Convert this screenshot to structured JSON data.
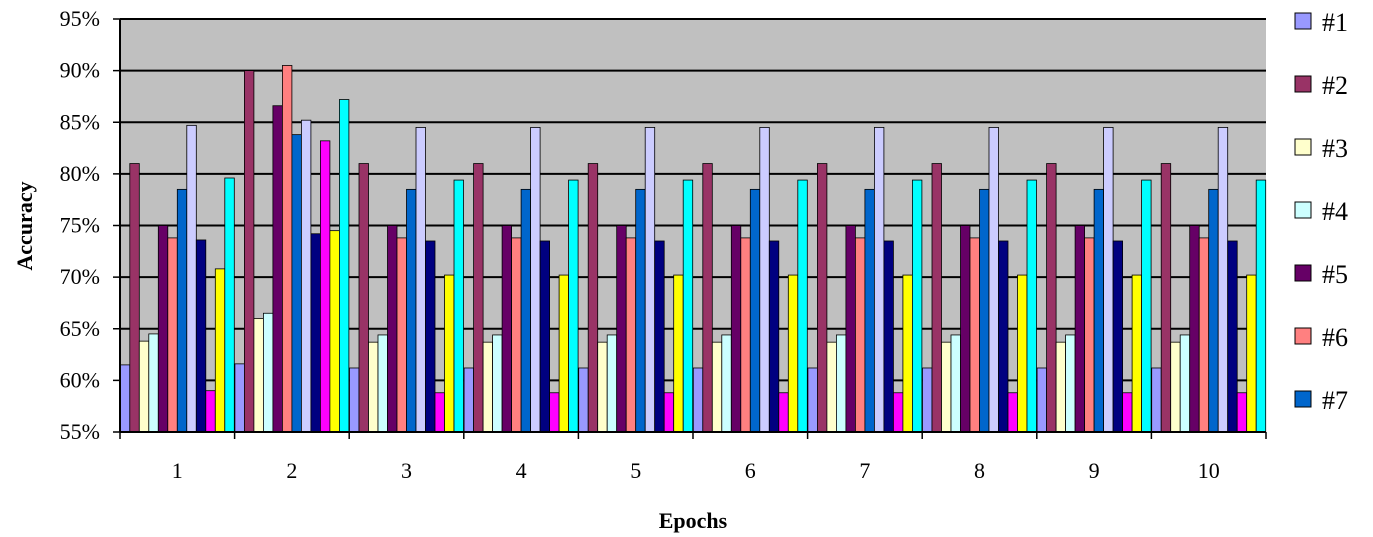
{
  "chart_data": {
    "type": "bar",
    "xlabel": "Epochs",
    "ylabel": "Accuracy",
    "y_unit": "%",
    "ylim": [
      55,
      95
    ],
    "yticks": [
      55,
      60,
      65,
      70,
      75,
      80,
      85,
      90,
      95
    ],
    "ytick_labels": [
      "55%",
      "60%",
      "65%",
      "70%",
      "75%",
      "80%",
      "85%",
      "90%",
      "95%"
    ],
    "grid": true,
    "legend_position": "right",
    "plot_background": "#c0c0c0",
    "categories": [
      "1",
      "2",
      "3",
      "4",
      "5",
      "6",
      "7",
      "8",
      "9",
      "10"
    ],
    "series": [
      {
        "color": "#9999ff",
        "values": [
          61.5,
          61.6,
          61.2,
          61.2,
          61.2,
          61.2,
          61.2,
          61.2,
          61.2,
          61.2
        ]
      },
      {
        "color": "#993366",
        "values": [
          81.0,
          90.0,
          81.0,
          81.0,
          81.0,
          81.0,
          81.0,
          81.0,
          81.0,
          81.0
        ]
      },
      {
        "color": "#ffffcc",
        "values": [
          63.8,
          66.0,
          63.7,
          63.7,
          63.7,
          63.7,
          63.7,
          63.7,
          63.7,
          63.7
        ]
      },
      {
        "color": "#ccffff",
        "values": [
          64.5,
          66.5,
          64.4,
          64.4,
          64.4,
          64.4,
          64.4,
          64.4,
          64.4,
          64.4
        ]
      },
      {
        "color": "#660066",
        "values": [
          75.0,
          86.6,
          75.0,
          75.0,
          75.0,
          75.0,
          75.0,
          75.0,
          75.0,
          75.0
        ]
      },
      {
        "color": "#ff8080",
        "values": [
          73.8,
          90.5,
          73.8,
          73.8,
          73.8,
          73.8,
          73.8,
          73.8,
          73.8,
          73.8
        ]
      },
      {
        "color": "#0066cc",
        "values": [
          78.5,
          83.8,
          78.5,
          78.5,
          78.5,
          78.5,
          78.5,
          78.5,
          78.5,
          78.5
        ]
      },
      {
        "color": "#ccccff",
        "values": [
          84.7,
          85.2,
          84.5,
          84.5,
          84.5,
          84.5,
          84.5,
          84.5,
          84.5,
          84.5
        ]
      },
      {
        "color": "#000080",
        "values": [
          73.6,
          74.2,
          73.5,
          73.5,
          73.5,
          73.5,
          73.5,
          73.5,
          73.5,
          73.5
        ]
      },
      {
        "color": "#ff00ff",
        "values": [
          59.0,
          83.2,
          58.8,
          58.8,
          58.8,
          58.8,
          58.8,
          58.8,
          58.8,
          58.8
        ]
      },
      {
        "color": "#ffff00",
        "values": [
          70.8,
          74.5,
          70.2,
          70.2,
          70.2,
          70.2,
          70.2,
          70.2,
          70.2,
          70.2
        ]
      },
      {
        "color": "#00ffff",
        "values": [
          79.6,
          87.2,
          79.4,
          79.4,
          79.4,
          79.4,
          79.4,
          79.4,
          79.4,
          79.4
        ]
      }
    ],
    "legend": [
      {
        "label": "#1",
        "color": "#9999ff"
      },
      {
        "label": "#2",
        "color": "#993366"
      },
      {
        "label": "#3",
        "color": "#ffffcc"
      },
      {
        "label": "#4",
        "color": "#ccffff"
      },
      {
        "label": "#5",
        "color": "#660066"
      },
      {
        "label": "#6",
        "color": "#ff8080"
      },
      {
        "label": "#7",
        "color": "#0066cc"
      }
    ]
  }
}
